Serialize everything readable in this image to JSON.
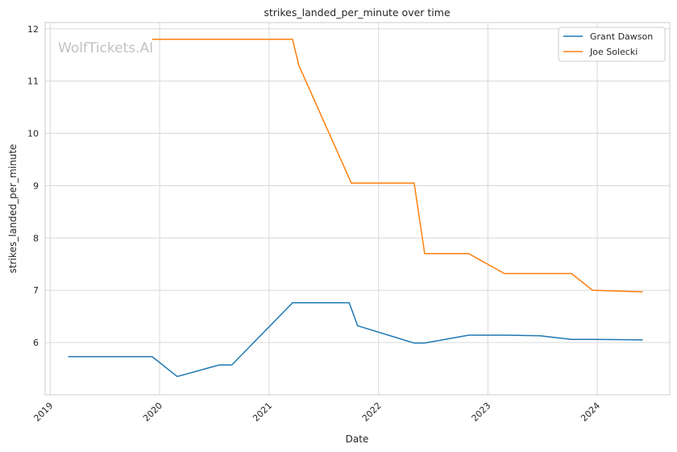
{
  "chart_data": {
    "type": "line",
    "title": "strikes_landed_per_minute over time",
    "xlabel": "Date",
    "ylabel": "strikes_landed_per_minute",
    "xlim": [
      "2018-12-15",
      "2024-08-30"
    ],
    "ylim": [
      5.0,
      12.12
    ],
    "x_ticks": [
      "2019",
      "2020",
      "2021",
      "2022",
      "2023",
      "2024"
    ],
    "y_ticks": [
      6,
      7,
      8,
      9,
      10,
      11,
      12
    ],
    "grid": true,
    "legend_position": "top-right",
    "watermark": "WolfTickets.AI",
    "series": [
      {
        "name": "Grant Dawson",
        "color": "#1f77b4",
        "points": [
          [
            "2019-03-02",
            5.73
          ],
          [
            "2019-12-07",
            5.73
          ],
          [
            "2020-02-29",
            5.35
          ],
          [
            "2020-07-18",
            5.57
          ],
          [
            "2020-08-29",
            5.57
          ],
          [
            "2021-03-20",
            6.76
          ],
          [
            "2021-09-25",
            6.76
          ],
          [
            "2021-10-23",
            6.32
          ],
          [
            "2022-04-30",
            5.99
          ],
          [
            "2022-06-04",
            5.99
          ],
          [
            "2022-10-29",
            6.14
          ],
          [
            "2023-02-25",
            6.14
          ],
          [
            "2023-06-24",
            6.13
          ],
          [
            "2023-10-07",
            6.06
          ],
          [
            "2023-12-16",
            6.06
          ],
          [
            "2024-06-01",
            6.05
          ]
        ]
      },
      {
        "name": "Joe Solecki",
        "color": "#ff7f0e",
        "points": [
          [
            "2019-12-07",
            11.8
          ],
          [
            "2021-03-20",
            11.8
          ],
          [
            "2021-04-10",
            11.3
          ],
          [
            "2021-10-02",
            9.05
          ],
          [
            "2022-04-30",
            9.05
          ],
          [
            "2022-06-04",
            7.7
          ],
          [
            "2022-10-29",
            7.7
          ],
          [
            "2023-02-25",
            7.32
          ],
          [
            "2023-10-07",
            7.32
          ],
          [
            "2023-12-16",
            7.0
          ],
          [
            "2024-06-01",
            6.97
          ]
        ]
      }
    ]
  }
}
